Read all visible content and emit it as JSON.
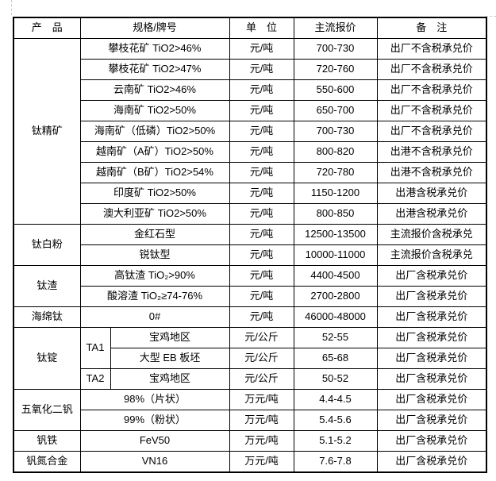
{
  "colors": {
    "table_border": "#000000",
    "text": "#000000",
    "background": "#ffffff",
    "margin_mark": "#cccccc"
  },
  "table": {
    "headers": [
      "产　品",
      "规格/牌号",
      "单　位",
      "主流报价",
      "备　注"
    ],
    "groups": [
      {
        "product": "钛精矿",
        "rows": [
          {
            "spec": "攀枝花矿 TiO2>46%",
            "unit": "元/吨",
            "price": "700-730",
            "note": "出厂不含税承兑价"
          },
          {
            "spec": "攀枝花矿 TiO2>47%",
            "unit": "元/吨",
            "price": "720-760",
            "note": "出厂不含税承兑价"
          },
          {
            "spec": "云南矿 TiO2>46%",
            "unit": "元/吨",
            "price": "550-600",
            "note": "出厂不含税承兑价"
          },
          {
            "spec": "海南矿 TiO2>50%",
            "unit": "元/吨",
            "price": "650-700",
            "note": "出厂不含税承兑价"
          },
          {
            "spec": "海南矿（低磷）TiO2>50%",
            "unit": "元/吨",
            "price": "700-730",
            "note": "出厂不含税承兑价"
          },
          {
            "spec": "越南矿（A矿）TiO2>50%",
            "unit": "元/吨",
            "price": "800-820",
            "note": "出港不含税承兑价"
          },
          {
            "spec": "越南矿（B矿）TiO2>54%",
            "unit": "元/吨",
            "price": "720-780",
            "note": "出港不含税承兑价"
          },
          {
            "spec": "印度矿 TiO2>50%",
            "unit": "元/吨",
            "price": "1150-1200",
            "note": "出港含税承兑价"
          },
          {
            "spec": "澳大利亚矿 TiO2>50%",
            "unit": "元/吨",
            "price": "800-850",
            "note": "出港含税承兑价"
          }
        ]
      },
      {
        "product": "钛白粉",
        "rows": [
          {
            "spec": "金红石型",
            "unit": "元/吨",
            "price": "12500-13500",
            "note": "主流报价含税承兑"
          },
          {
            "spec": "锐钛型",
            "unit": "元/吨",
            "price": "10000-11000",
            "note": "主流报价含税承兑"
          }
        ]
      },
      {
        "product": "钛渣",
        "rows": [
          {
            "spec": "高钛渣 TiO₂>90%",
            "unit": "元/吨",
            "price": "4400-4500",
            "note": "出厂含税承兑价"
          },
          {
            "spec": "酸溶渣 TiO₂≥74-76%",
            "unit": "元/吨",
            "price": "2700-2800",
            "note": "出厂含税承兑价"
          }
        ]
      },
      {
        "product": "海绵钛",
        "rows": [
          {
            "spec": "0#",
            "unit": "元/吨",
            "price": "46000-48000",
            "note": "出厂含税承兑价"
          }
        ]
      },
      {
        "product": "钛锭",
        "rows": [
          {
            "grade": "TA1",
            "grade_span": 2,
            "spec": "宝鸡地区",
            "unit": "元/公斤",
            "price": "52-55",
            "note": "出厂含税承兑价"
          },
          {
            "spec": "大型 EB 板坯",
            "unit": "元/公斤",
            "price": "65-68",
            "note": "出厂含税承兑价"
          },
          {
            "grade": "TA2",
            "grade_span": 1,
            "spec": "宝鸡地区",
            "unit": "元/公斤",
            "price": "50-52",
            "note": "出厂含税承兑价"
          }
        ]
      },
      {
        "product": "五氧化二钒",
        "rows": [
          {
            "spec": "98%（片状）",
            "unit": "万元/吨",
            "price": "4.4-4.5",
            "note": "出厂含税承兑价"
          },
          {
            "spec": "99%（粉状）",
            "unit": "万元/吨",
            "price": "5.4-5.6",
            "note": "出厂含税承兑价"
          }
        ]
      },
      {
        "product": "钒铁",
        "rows": [
          {
            "spec": "FeV50",
            "unit": "万元/吨",
            "price": "5.1-5.2",
            "note": "出厂含税承兑价"
          }
        ]
      },
      {
        "product": "钒氮合金",
        "rows": [
          {
            "spec": "VN16",
            "unit": "万元/吨",
            "price": "7.6-7.8",
            "note": "出厂含税承兑价"
          }
        ]
      }
    ]
  }
}
